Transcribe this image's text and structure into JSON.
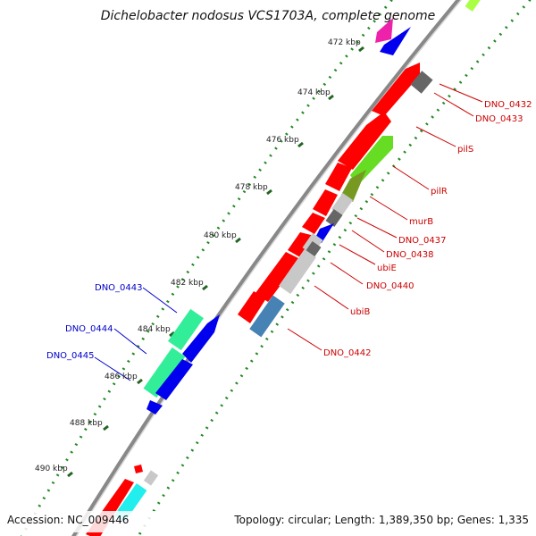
{
  "title": "Dichelobacter nodosus VCS1703A, complete genome",
  "footer": {
    "accession": "Accession: NC_009446",
    "summary": "Topology: circular; Length: 1,389,350 bp; Genes: 1,335"
  },
  "ticks": [
    "472 kbp",
    "474 kbp",
    "476 kbp",
    "478 kbp",
    "480 kbp",
    "482 kbp",
    "484 kbp",
    "486 kbp",
    "488 kbp",
    "490 kbp"
  ],
  "genes_right": [
    "DNO_0432",
    "DNO_0433",
    "pilS",
    "pilR",
    "murB",
    "DNO_0437",
    "DNO_0438",
    "ubiE",
    "DNO_0440",
    "ubiB",
    "DNO_0442"
  ],
  "genes_left": [
    "DNO_0443",
    "DNO_0444",
    "DNO_0445"
  ],
  "colors": {
    "forward_label": "#cc0000",
    "reverse_label": "#0000cc",
    "red_gene": "#ff0000",
    "blue_gene": "#0000ee",
    "teal_gene": "#33ee99",
    "green_gene": "#66dd22",
    "olive_gene": "#779922",
    "steel_gene": "#4682b4",
    "light_gray_gene": "#c8c8c8",
    "dark_gray_gene": "#666666",
    "cyan_gene": "#22eeee",
    "magenta_gene": "#ee22aa",
    "lime_gene": "#aaff44",
    "backbone": "#888888",
    "dots": "#228822",
    "ticks": "#226622"
  }
}
